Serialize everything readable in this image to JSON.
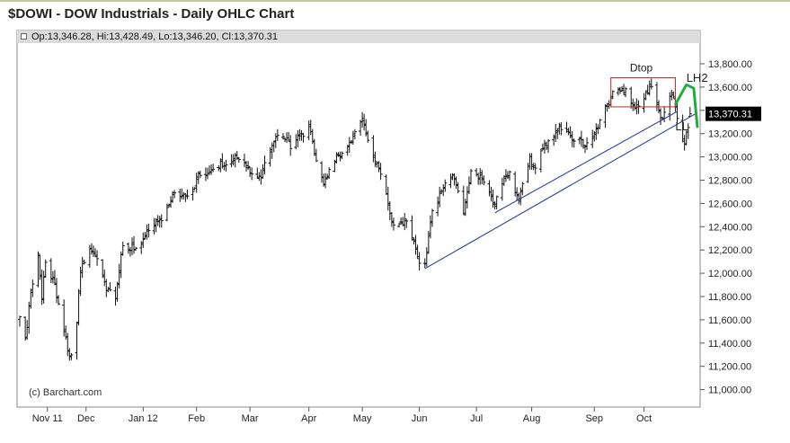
{
  "title": "$DOWI - DOW Industrials - Daily OHLC Chart",
  "legend": "Op:13,346.28, Hi:13,428.49, Lo:13,346.20, Cl:13,370.31",
  "copyright": "(c) Barchart.com",
  "last_price_label": "13,370.31",
  "colors": {
    "bars": "#111111",
    "trendline": "#1f2f9f",
    "pattern_box": "#cc2222",
    "projection": "#22aa44",
    "last_price_bg": "#000000",
    "legend_bg": "#dcdcdc",
    "frame": "#888888"
  },
  "chart_data": {
    "type": "ohlc",
    "title": "$DOWI - DOW Industrials - Daily OHLC Chart",
    "ylim": [
      10850,
      13970
    ],
    "grid": false,
    "yticks": [
      11000,
      11200,
      11400,
      11600,
      11800,
      12000,
      12200,
      12400,
      12600,
      12800,
      13000,
      13200,
      13400,
      13600,
      13800
    ],
    "ytick_labels": [
      "11,000.00",
      "11,200.00",
      "11,400.00",
      "11,600.00",
      "11,800.00",
      "12,000.00",
      "12,200.00",
      "12,400.00",
      "12,600.00",
      "12,800.00",
      "13,000.00",
      "13,200.00",
      "13,400.00",
      "13,600.00",
      "13,800.00"
    ],
    "x_start": "2011-10-28",
    "x_end": "2012-10-30",
    "xticks": [
      {
        "label": "Nov 11",
        "date": "2011-11-12"
      },
      {
        "label": "Dec",
        "date": "2011-12-03"
      },
      {
        "label": "Jan 12",
        "date": "2012-01-03"
      },
      {
        "label": "Feb",
        "date": "2012-02-01"
      },
      {
        "label": "Mar",
        "date": "2012-03-01"
      },
      {
        "label": "Apr",
        "date": "2012-04-02"
      },
      {
        "label": "May",
        "date": "2012-05-01"
      },
      {
        "label": "Jun",
        "date": "2012-06-01"
      },
      {
        "label": "Jul",
        "date": "2012-07-02"
      },
      {
        "label": "Aug",
        "date": "2012-08-01"
      },
      {
        "label": "Sep",
        "date": "2012-09-04"
      },
      {
        "label": "Oct",
        "date": "2012-10-01"
      }
    ],
    "anchors": [
      [
        "2011-10-28",
        11600
      ],
      [
        "2011-10-31",
        11450
      ],
      [
        "2011-11-03",
        11800
      ],
      [
        "2011-11-07",
        12150
      ],
      [
        "2011-11-09",
        11800
      ],
      [
        "2011-11-11",
        12100
      ],
      [
        "2011-11-16",
        11900
      ],
      [
        "2011-11-18",
        11750
      ],
      [
        "2011-11-23",
        11350
      ],
      [
        "2011-11-25",
        11270
      ],
      [
        "2011-11-28",
        11600
      ],
      [
        "2011-11-30",
        12050
      ],
      [
        "2011-12-06",
        12200
      ],
      [
        "2011-12-09",
        12150
      ],
      [
        "2011-12-14",
        11850
      ],
      [
        "2011-12-19",
        11800
      ],
      [
        "2011-12-23",
        12250
      ],
      [
        "2011-12-30",
        12200
      ],
      [
        "2012-01-06",
        12400
      ],
      [
        "2012-01-13",
        12450
      ],
      [
        "2012-01-20",
        12700
      ],
      [
        "2012-01-27",
        12650
      ],
      [
        "2012-02-03",
        12850
      ],
      [
        "2012-02-10",
        12900
      ],
      [
        "2012-02-17",
        12950
      ],
      [
        "2012-02-24",
        13000
      ],
      [
        "2012-03-06",
        12800
      ],
      [
        "2012-03-16",
        13200
      ],
      [
        "2012-03-23",
        13100
      ],
      [
        "2012-03-30",
        13200
      ],
      [
        "2012-04-02",
        13250
      ],
      [
        "2012-04-10",
        12750
      ],
      [
        "2012-04-13",
        12900
      ],
      [
        "2012-04-20",
        13050
      ],
      [
        "2012-04-27",
        13200
      ],
      [
        "2012-05-01",
        13300
      ],
      [
        "2012-05-07",
        13000
      ],
      [
        "2012-05-11",
        12850
      ],
      [
        "2012-05-18",
        12400
      ],
      [
        "2012-05-25",
        12450
      ],
      [
        "2012-06-01",
        12100
      ],
      [
        "2012-06-04",
        12050
      ],
      [
        "2012-06-08",
        12550
      ],
      [
        "2012-06-19",
        12850
      ],
      [
        "2012-06-25",
        12500
      ],
      [
        "2012-06-29",
        12850
      ],
      [
        "2012-07-06",
        12800
      ],
      [
        "2012-07-12",
        12600
      ],
      [
        "2012-07-17",
        12800
      ],
      [
        "2012-07-20",
        12850
      ],
      [
        "2012-07-25",
        12650
      ],
      [
        "2012-07-31",
        13000
      ],
      [
        "2012-08-02",
        12900
      ],
      [
        "2012-08-10",
        13150
      ],
      [
        "2012-08-17",
        13250
      ],
      [
        "2012-08-24",
        13150
      ],
      [
        "2012-08-31",
        13100
      ],
      [
        "2012-09-07",
        13300
      ],
      [
        "2012-09-14",
        13550
      ],
      [
        "2012-09-18",
        13550
      ],
      [
        "2012-09-21",
        13580
      ],
      [
        "2012-09-26",
        13420
      ],
      [
        "2012-10-01",
        13500
      ],
      [
        "2012-10-05",
        13600
      ],
      [
        "2012-10-10",
        13350
      ],
      [
        "2012-10-12",
        13350
      ],
      [
        "2012-10-16",
        13550
      ],
      [
        "2012-10-19",
        13350
      ],
      [
        "2012-10-23",
        13100
      ],
      [
        "2012-10-26",
        13370
      ]
    ],
    "last": {
      "open": 13346.28,
      "high": 13428.49,
      "low": 13346.2,
      "close": 13370.31
    },
    "annotations": {
      "trendlines": [
        {
          "from": [
            "2012-06-04",
            12040
          ],
          "to": [
            "2012-10-30",
            13380
          ]
        },
        {
          "from": [
            "2012-07-12",
            12520
          ],
          "to": [
            "2012-10-19",
            13390
          ]
        }
      ],
      "box": {
        "from": [
          "2012-09-13",
          13430
        ],
        "to": [
          "2012-10-18",
          13680
        ],
        "label": "Dtop"
      },
      "projection": [
        [
          "2012-10-18",
          13450
        ],
        [
          "2012-10-24",
          13620
        ],
        [
          "2012-10-28",
          13590
        ],
        [
          "2012-10-30",
          13250
        ]
      ],
      "labels": [
        {
          "text": "LH2",
          "at": [
            "2012-10-24",
            13645
          ]
        },
        {
          "text": "LL",
          "at": [
            "2012-10-18",
            13230
          ]
        }
      ]
    }
  }
}
